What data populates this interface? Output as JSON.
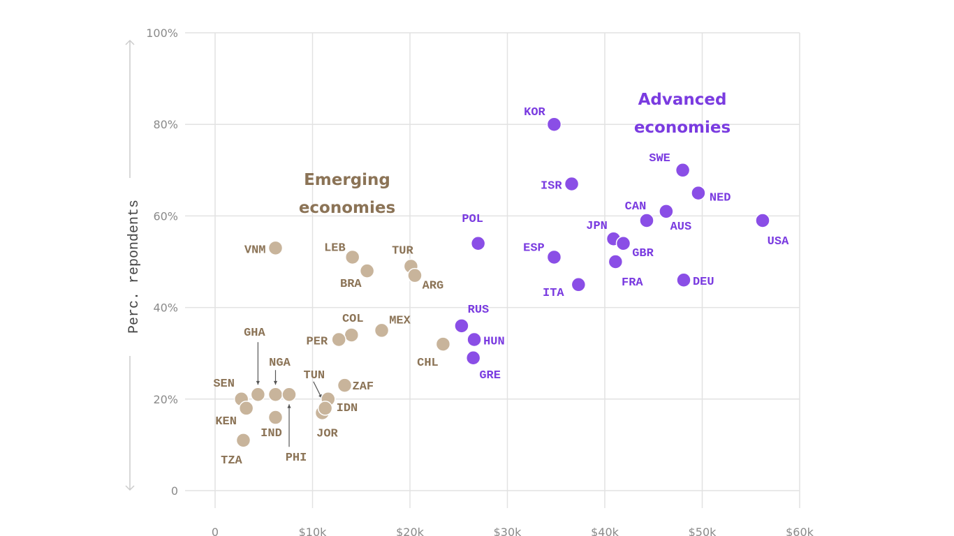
{
  "chart_data": {
    "type": "scatter",
    "title": "",
    "xlabel": "",
    "ylabel": "Perc. repondents",
    "xlim": [
      0,
      60000
    ],
    "ylim": [
      0,
      100
    ],
    "grid": true,
    "x_ticks": [
      "0",
      "$10k",
      "$20k",
      "$30k",
      "$40k",
      "$50k",
      "$60k"
    ],
    "y_ticks": [
      "0",
      "20%",
      "40%",
      "60%",
      "80%",
      "100%"
    ],
    "annotations": [
      {
        "lines": [
          "Emerging",
          "economies"
        ],
        "group": "emerging"
      },
      {
        "lines": [
          "Advanced",
          "economies"
        ],
        "group": "advanced"
      }
    ],
    "colors": {
      "emerging": "#c8b49b",
      "emerging_text": "#8b7356",
      "advanced": "#8a4ee6",
      "advanced_text": "#7a3be0"
    },
    "series": [
      {
        "group": "emerging",
        "points": [
          {
            "label": "VNM",
            "x": 6200,
            "y": 53
          },
          {
            "label": "LEB",
            "x": 14100,
            "y": 51
          },
          {
            "label": "BRA",
            "x": 15600,
            "y": 48
          },
          {
            "label": "TUR",
            "x": 20100,
            "y": 49
          },
          {
            "label": "ARG",
            "x": 20500,
            "y": 47
          },
          {
            "label": "COL",
            "x": 14000,
            "y": 34
          },
          {
            "label": "PER",
            "x": 12700,
            "y": 33
          },
          {
            "label": "MEX",
            "x": 17100,
            "y": 35
          },
          {
            "label": "CHL",
            "x": 23400,
            "y": 32
          },
          {
            "label": "GHA",
            "x": 4400,
            "y": 21
          },
          {
            "label": "NGA",
            "x": 6200,
            "y": 21
          },
          {
            "label": "PHI",
            "x": 7600,
            "y": 21
          },
          {
            "label": "SEN",
            "x": 2700,
            "y": 20
          },
          {
            "label": "KEN",
            "x": 3200,
            "y": 18
          },
          {
            "label": "IND",
            "x": 6200,
            "y": 16
          },
          {
            "label": "TZA",
            "x": 2900,
            "y": 11
          },
          {
            "label": "TUN",
            "x": 11600,
            "y": 20
          },
          {
            "label": "JOR",
            "x": 11000,
            "y": 17
          },
          {
            "label": "IDN",
            "x": 11300,
            "y": 18
          },
          {
            "label": "ZAF",
            "x": 13300,
            "y": 23
          }
        ]
      },
      {
        "group": "advanced",
        "points": [
          {
            "label": "KOR",
            "x": 34800,
            "y": 80
          },
          {
            "label": "ISR",
            "x": 36600,
            "y": 67
          },
          {
            "label": "POL",
            "x": 27000,
            "y": 54
          },
          {
            "label": "ESP",
            "x": 34800,
            "y": 51
          },
          {
            "label": "ITA",
            "x": 37300,
            "y": 45
          },
          {
            "label": "SWE",
            "x": 48000,
            "y": 70
          },
          {
            "label": "NED",
            "x": 49600,
            "y": 65
          },
          {
            "label": "CAN",
            "x": 44300,
            "y": 59
          },
          {
            "label": "AUS",
            "x": 46300,
            "y": 61
          },
          {
            "label": "JPN",
            "x": 40900,
            "y": 55
          },
          {
            "label": "GBR",
            "x": 41900,
            "y": 54
          },
          {
            "label": "FRA",
            "x": 41100,
            "y": 50
          },
          {
            "label": "DEU",
            "x": 48100,
            "y": 46
          },
          {
            "label": "USA",
            "x": 56200,
            "y": 59
          },
          {
            "label": "RUS",
            "x": 25300,
            "y": 36
          },
          {
            "label": "HUN",
            "x": 26600,
            "y": 33
          },
          {
            "label": "GRE",
            "x": 26500,
            "y": 29
          }
        ]
      }
    ]
  }
}
